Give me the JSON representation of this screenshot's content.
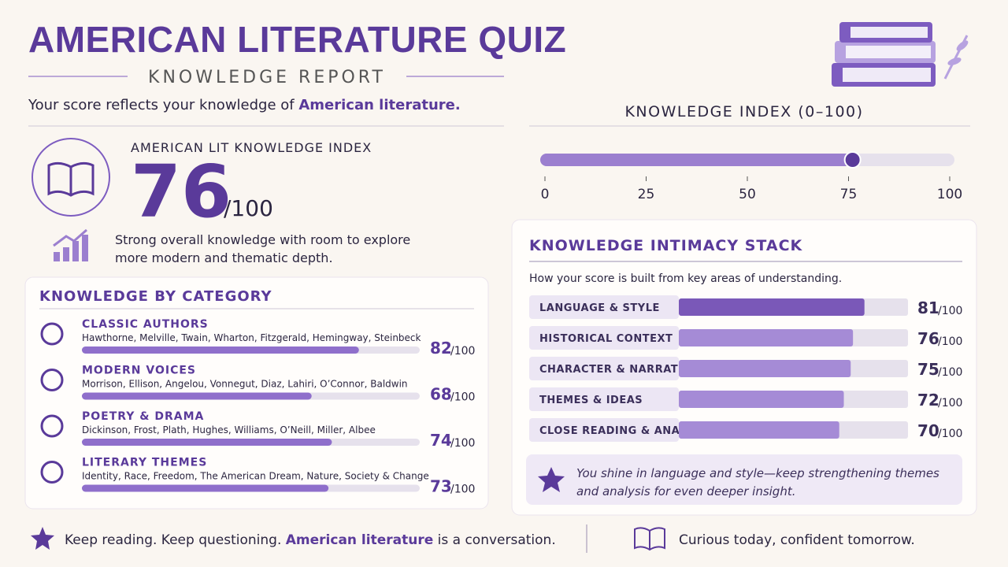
{
  "header": {
    "title": "AMERICAN LITERATURE QUIZ",
    "subtitle": "KNOWLEDGE REPORT",
    "intro": {
      "text": "Your score reflects your knowledge of ",
      "highlight": "American literature."
    }
  },
  "out_of": {
    "value": 100,
    "label": "/100"
  },
  "index": {
    "label": "AMERICAN LIT KNOWLEDGE INDEX",
    "score": 76,
    "description": [
      "Strong overall knowledge with room to explore",
      "more modern and thematic depth."
    ]
  },
  "gauge": {
    "title": "KNOWLEDGE INDEX (0–100)",
    "range": [
      0,
      100
    ],
    "ticks": [
      0,
      25,
      50,
      75,
      100
    ]
  },
  "categories": {
    "title": "KNOWLEDGE BY CATEGORY",
    "items": [
      {
        "name": "CLASSIC AUTHORS",
        "authors": "Hawthorne, Melville, Twain, Wharton, Fitzgerald, Hemingway, Steinbeck",
        "score": 82
      },
      {
        "name": "MODERN VOICES",
        "authors": "Morrison, Ellison, Angelou, Vonnegut, Diaz, Lahiri, O’Connor, Baldwin",
        "score": 68
      },
      {
        "name": "POETRY & DRAMA",
        "authors": "Dickinson, Frost, Plath, Hughes, Williams, O’Neill, Miller, Albee",
        "score": 74
      },
      {
        "name": "LITERARY THEMES",
        "authors": "Identity, Race, Freedom, The American Dream, Nature, Society & Change",
        "score": 73
      }
    ]
  },
  "stack": {
    "title": "KNOWLEDGE INTIMACY STACK",
    "subtitle": "How your score is built from key areas of understanding.",
    "items": [
      {
        "name": "LANGUAGE & STYLE",
        "score": 81
      },
      {
        "name": "HISTORICAL CONTEXT",
        "score": 76
      },
      {
        "name": "CHARACTER & NARRATIVE",
        "score": 75
      },
      {
        "name": "THEMES & IDEAS",
        "score": 72
      },
      {
        "name": "CLOSE READING & ANALYSIS",
        "score": 70
      }
    ],
    "note": [
      "You shine in language and style—keep strengthening themes",
      "and analysis for even deeper insight."
    ]
  },
  "footer": {
    "left": {
      "before": "Keep reading. Keep questioning. ",
      "highlight": "American literature",
      "after": " is a conversation."
    },
    "right": "Curious today, confident tomorrow."
  }
}
